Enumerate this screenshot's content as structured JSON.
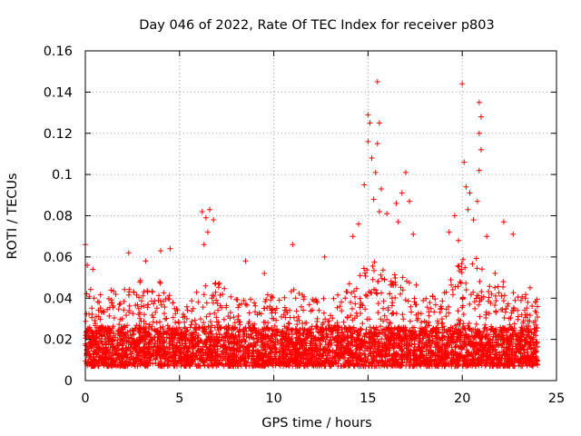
{
  "chart_data": {
    "type": "scatter",
    "title": "Day 046 of 2022, Rate Of TEC Index for receiver p803",
    "xlabel": "GPS time / hours",
    "ylabel": "ROTI / TECUs",
    "xlim": [
      0,
      25
    ],
    "ylim": [
      0,
      0.16
    ],
    "x_ticks": [
      0,
      5,
      10,
      15,
      20,
      25
    ],
    "x_tick_labels": [
      "0",
      "5",
      "10",
      "15",
      "20",
      "25"
    ],
    "y_ticks": [
      0,
      0.02,
      0.04,
      0.06,
      0.08,
      0.1,
      0.12,
      0.14,
      0.16
    ],
    "y_tick_labels": [
      "0",
      "0.02",
      "0.04",
      "0.06",
      "0.08",
      "0.1",
      "0.12",
      "0.14",
      "0.16"
    ],
    "grid": true,
    "marker": "+",
    "color": "#ff0000",
    "series": [
      {
        "name": "ROTI p803",
        "baseline_profile": {
          "x": [
            0,
            1,
            2,
            3,
            4,
            5,
            6,
            7,
            8,
            9,
            10,
            11,
            12,
            13,
            14,
            15,
            15.5,
            16,
            17,
            18,
            19,
            20,
            21,
            22,
            23,
            24
          ],
          "typical_max": [
            0.045,
            0.045,
            0.045,
            0.05,
            0.05,
            0.035,
            0.045,
            0.05,
            0.04,
            0.04,
            0.045,
            0.045,
            0.04,
            0.04,
            0.05,
            0.06,
            0.065,
            0.055,
            0.055,
            0.04,
            0.045,
            0.06,
            0.06,
            0.05,
            0.045,
            0.04
          ]
        },
        "notable_points": [
          {
            "x": 0.0,
            "y": 0.066
          },
          {
            "x": 0.1,
            "y": 0.056
          },
          {
            "x": 0.4,
            "y": 0.054
          },
          {
            "x": 2.3,
            "y": 0.062
          },
          {
            "x": 3.2,
            "y": 0.058
          },
          {
            "x": 4.0,
            "y": 0.063
          },
          {
            "x": 4.5,
            "y": 0.064
          },
          {
            "x": 6.2,
            "y": 0.082
          },
          {
            "x": 6.4,
            "y": 0.079
          },
          {
            "x": 6.6,
            "y": 0.083
          },
          {
            "x": 6.8,
            "y": 0.078
          },
          {
            "x": 6.5,
            "y": 0.072
          },
          {
            "x": 6.3,
            "y": 0.066
          },
          {
            "x": 8.5,
            "y": 0.058
          },
          {
            "x": 9.5,
            "y": 0.052
          },
          {
            "x": 11.0,
            "y": 0.066
          },
          {
            "x": 12.7,
            "y": 0.06
          },
          {
            "x": 14.2,
            "y": 0.07
          },
          {
            "x": 14.5,
            "y": 0.076
          },
          {
            "x": 14.8,
            "y": 0.095
          },
          {
            "x": 15.0,
            "y": 0.129
          },
          {
            "x": 15.1,
            "y": 0.125
          },
          {
            "x": 15.0,
            "y": 0.116
          },
          {
            "x": 15.2,
            "y": 0.108
          },
          {
            "x": 15.4,
            "y": 0.101
          },
          {
            "x": 15.5,
            "y": 0.145
          },
          {
            "x": 15.6,
            "y": 0.125
          },
          {
            "x": 15.5,
            "y": 0.115
          },
          {
            "x": 15.7,
            "y": 0.093
          },
          {
            "x": 15.3,
            "y": 0.088
          },
          {
            "x": 15.6,
            "y": 0.082
          },
          {
            "x": 16.0,
            "y": 0.081
          },
          {
            "x": 16.5,
            "y": 0.086
          },
          {
            "x": 16.8,
            "y": 0.091
          },
          {
            "x": 17.0,
            "y": 0.101
          },
          {
            "x": 17.2,
            "y": 0.087
          },
          {
            "x": 16.6,
            "y": 0.077
          },
          {
            "x": 17.4,
            "y": 0.071
          },
          {
            "x": 19.3,
            "y": 0.072
          },
          {
            "x": 19.6,
            "y": 0.08
          },
          {
            "x": 19.8,
            "y": 0.068
          },
          {
            "x": 20.0,
            "y": 0.144
          },
          {
            "x": 20.1,
            "y": 0.106
          },
          {
            "x": 20.2,
            "y": 0.094
          },
          {
            "x": 20.4,
            "y": 0.091
          },
          {
            "x": 20.3,
            "y": 0.083
          },
          {
            "x": 20.6,
            "y": 0.078
          },
          {
            "x": 20.9,
            "y": 0.135
          },
          {
            "x": 21.0,
            "y": 0.128
          },
          {
            "x": 20.9,
            "y": 0.12
          },
          {
            "x": 21.0,
            "y": 0.112
          },
          {
            "x": 20.9,
            "y": 0.102
          },
          {
            "x": 20.8,
            "y": 0.087
          },
          {
            "x": 21.3,
            "y": 0.07
          },
          {
            "x": 22.2,
            "y": 0.077
          },
          {
            "x": 22.7,
            "y": 0.071
          },
          {
            "x": 23.6,
            "y": 0.045
          }
        ]
      }
    ]
  }
}
